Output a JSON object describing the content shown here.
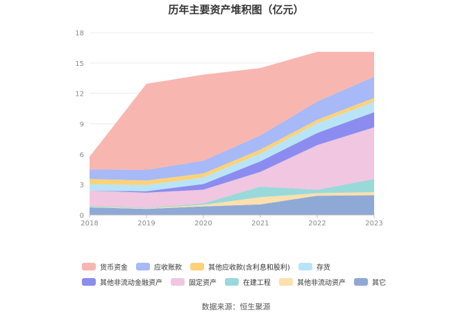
{
  "chart_data": {
    "type": "area",
    "stacked": true,
    "title": "历年主要资产堆积图（亿元）",
    "x": [
      "2018",
      "2019",
      "2020",
      "2021",
      "2022",
      "2023"
    ],
    "ylim": [
      0,
      18
    ],
    "yticks": [
      0,
      3,
      6,
      9,
      12,
      15,
      18
    ],
    "grid": true,
    "legend_position": "bottom",
    "series": [
      {
        "name": "其它",
        "color": "#8fa9d6",
        "values": [
          0.75,
          0.6,
          0.85,
          1.05,
          1.9,
          1.95
        ]
      },
      {
        "name": "其他非流动资产",
        "color": "#fde0ad",
        "values": [
          0.05,
          0.05,
          0.15,
          0.7,
          0.25,
          0.3
        ]
      },
      {
        "name": "在建工程",
        "color": "#9ad9da",
        "values": [
          0.1,
          0.05,
          0.15,
          1.05,
          0.35,
          1.3
        ]
      },
      {
        "name": "固定资产",
        "color": "#f0c6e0",
        "values": [
          1.5,
          1.5,
          1.35,
          1.45,
          4.4,
          5.1
        ]
      },
      {
        "name": "其他非流动金融资产",
        "color": "#8c8cf0",
        "values": [
          0.0,
          0.15,
          0.55,
          1.05,
          1.2,
          1.5
        ]
      },
      {
        "name": "存货",
        "color": "#b9e4f7",
        "values": [
          0.65,
          0.6,
          0.65,
          0.75,
          0.95,
          1.0
        ]
      },
      {
        "name": "其他应收款(含利息和股利)",
        "color": "#fcd279",
        "values": [
          0.5,
          0.45,
          0.4,
          0.4,
          0.35,
          0.4
        ]
      },
      {
        "name": "应收账款",
        "color": "#a7b9f6",
        "values": [
          0.95,
          1.05,
          1.25,
          1.4,
          1.8,
          2.1
        ]
      },
      {
        "name": "货币资金",
        "color": "#f8b6b0",
        "values": [
          1.25,
          8.5,
          8.5,
          6.65,
          4.9,
          2.45
        ]
      }
    ],
    "legend_order": [
      "货币资金",
      "应收账款",
      "其他应收款(含利息和股利)",
      "存货",
      "其他非流动金融资产",
      "固定资产",
      "在建工程",
      "其他非流动资产",
      "其它"
    ]
  },
  "source_text": "数据来源：恒生聚源"
}
